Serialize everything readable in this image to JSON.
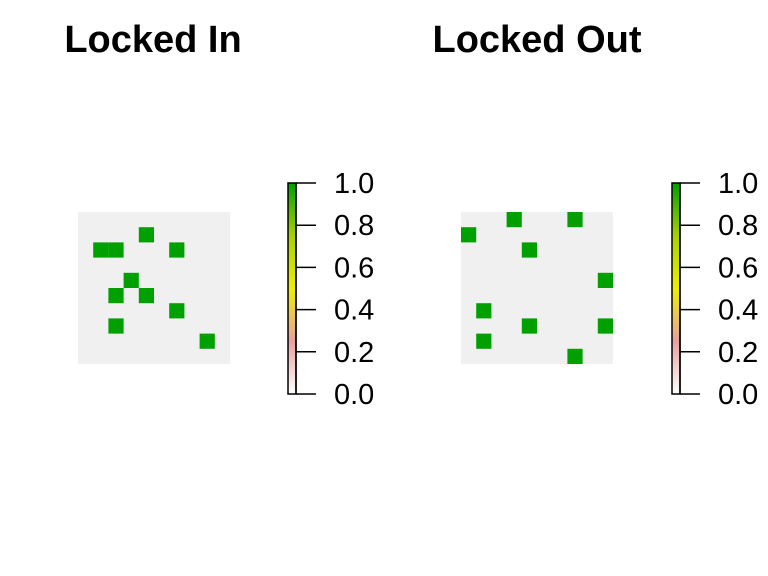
{
  "chart_data": [
    {
      "type": "heatmap",
      "title": "Locked In",
      "grid": {
        "cols": 10,
        "rows": 10
      },
      "background_color": "#f0f0f0",
      "cell_color": "#00a000",
      "cells": [
        {
          "col": 4,
          "row": 1,
          "value": 1.0
        },
        {
          "col": 1,
          "row": 2,
          "value": 1.0
        },
        {
          "col": 2,
          "row": 2,
          "value": 1.0
        },
        {
          "col": 6,
          "row": 2,
          "value": 1.0
        },
        {
          "col": 3,
          "row": 4,
          "value": 1.0
        },
        {
          "col": 2,
          "row": 5,
          "value": 1.0
        },
        {
          "col": 4,
          "row": 5,
          "value": 1.0
        },
        {
          "col": 6,
          "row": 6,
          "value": 1.0
        },
        {
          "col": 2,
          "row": 7,
          "value": 1.0
        },
        {
          "col": 8,
          "row": 8,
          "value": 1.0
        }
      ],
      "legend": {
        "ticks": [
          "0.0",
          "0.2",
          "0.4",
          "0.6",
          "0.8",
          "1.0"
        ],
        "range": [
          0,
          1
        ],
        "colors": [
          "#ffffff",
          "#e8a0a0",
          "#eeee00",
          "#00a000"
        ]
      }
    },
    {
      "type": "heatmap",
      "title": "Locked Out",
      "grid": {
        "cols": 10,
        "rows": 10
      },
      "background_color": "#f0f0f0",
      "cell_color": "#00a000",
      "cells": [
        {
          "col": 3,
          "row": 0,
          "value": 1.0
        },
        {
          "col": 7,
          "row": 0,
          "value": 1.0
        },
        {
          "col": 0,
          "row": 1,
          "value": 1.0
        },
        {
          "col": 4,
          "row": 2,
          "value": 1.0
        },
        {
          "col": 9,
          "row": 4,
          "value": 1.0
        },
        {
          "col": 1,
          "row": 6,
          "value": 1.0
        },
        {
          "col": 4,
          "row": 7,
          "value": 1.0
        },
        {
          "col": 9,
          "row": 7,
          "value": 1.0
        },
        {
          "col": 1,
          "row": 8,
          "value": 1.0
        },
        {
          "col": 7,
          "row": 9,
          "value": 1.0
        }
      ],
      "legend": {
        "ticks": [
          "0.0",
          "0.2",
          "0.4",
          "0.6",
          "0.8",
          "1.0"
        ],
        "range": [
          0,
          1
        ],
        "colors": [
          "#ffffff",
          "#e8a0a0",
          "#eeee00",
          "#00a000"
        ]
      }
    }
  ]
}
